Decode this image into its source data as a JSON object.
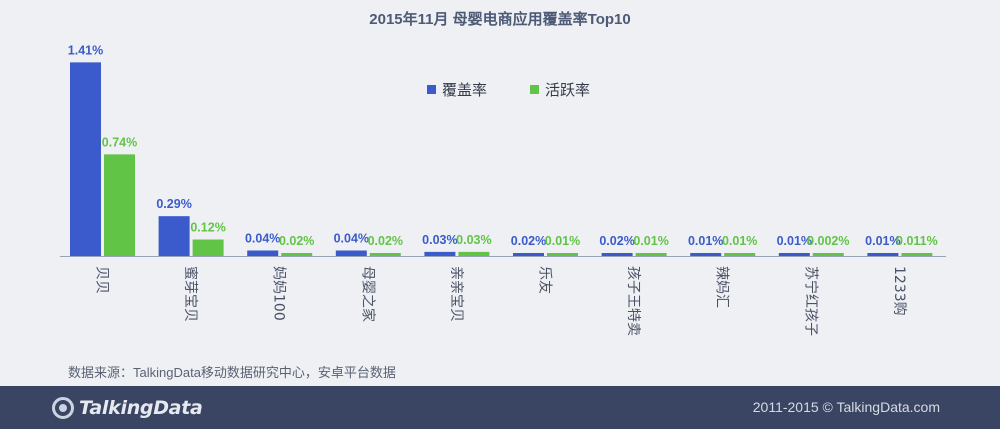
{
  "chart_data": {
    "type": "bar",
    "title": "2015年11月  母婴电商应用覆盖率Top10",
    "categories": [
      "贝贝",
      "蜜芽宝贝",
      "妈妈100",
      "母婴之家",
      "亲亲宝贝",
      "乐友",
      "孩子王特卖",
      "辣妈汇",
      "苏宁红孩子",
      "1233购"
    ],
    "series": [
      {
        "name": "覆盖率",
        "color": "#3b5bcc",
        "values": [
          1.41,
          0.29,
          0.04,
          0.04,
          0.03,
          0.02,
          0.02,
          0.01,
          0.01,
          0.01
        ],
        "labels": [
          "1.41%",
          "0.29%",
          "0.04%",
          "0.04%",
          "0.03%",
          "0.02%",
          "0.02%",
          "0.01%",
          "0.01%",
          "0.01%"
        ]
      },
      {
        "name": "活跃率",
        "color": "#62c446",
        "values": [
          0.74,
          0.12,
          0.02,
          0.02,
          0.03,
          0.01,
          0.01,
          0.01,
          0.002,
          0.011
        ],
        "labels": [
          "0.74%",
          "0.12%",
          "0.02%",
          "0.02%",
          "0.03%",
          "0.01%",
          "0.01%",
          "0.01%",
          "0.002%",
          "0.011%"
        ]
      }
    ],
    "ylim": [
      0,
      1.5
    ],
    "grid": false,
    "legend_position": "top-center"
  },
  "source_note": "数据来源：TalkingData移动数据研究中心，安卓平台数据",
  "footer": {
    "logo_text": "TalkingData",
    "copyright": "2011-2015 © TalkingData.com"
  }
}
